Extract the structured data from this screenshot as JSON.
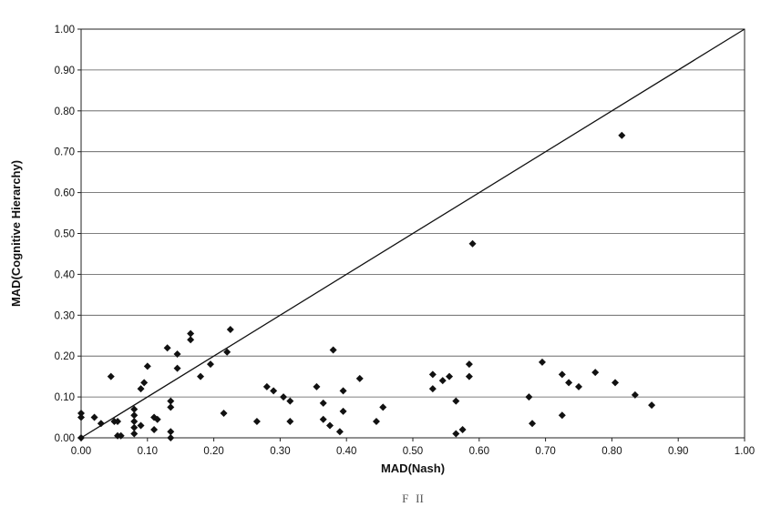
{
  "chart_data": {
    "type": "scatter",
    "title": "",
    "xlabel": "MAD(Nash)",
    "ylabel": "MAD(Cognitive Hierarchy)",
    "xlim": [
      0,
      1
    ],
    "ylim": [
      0,
      1
    ],
    "x_ticks": [
      "0.00",
      "0.10",
      "0.20",
      "0.30",
      "0.40",
      "0.50",
      "0.60",
      "0.70",
      "0.80",
      "0.90",
      "1.00"
    ],
    "y_ticks": [
      "0.00",
      "0.10",
      "0.20",
      "0.30",
      "0.40",
      "0.50",
      "0.60",
      "0.70",
      "0.80",
      "0.90",
      "1.00"
    ],
    "grid": "horizontal",
    "legend": "none",
    "reference_line": {
      "from": [
        0,
        0
      ],
      "to": [
        1,
        1
      ]
    },
    "marker": "diamond",
    "marker_color": "#111111",
    "caption": "F   II",
    "points": [
      [
        0.0,
        0.06
      ],
      [
        0.0,
        0.05
      ],
      [
        0.0,
        0.0
      ],
      [
        0.02,
        0.05
      ],
      [
        0.03,
        0.035
      ],
      [
        0.045,
        0.15
      ],
      [
        0.05,
        0.04
      ],
      [
        0.055,
        0.04
      ],
      [
        0.055,
        0.005
      ],
      [
        0.06,
        0.005
      ],
      [
        0.08,
        0.07
      ],
      [
        0.08,
        0.055
      ],
      [
        0.08,
        0.04
      ],
      [
        0.08,
        0.025
      ],
      [
        0.08,
        0.01
      ],
      [
        0.09,
        0.03
      ],
      [
        0.09,
        0.12
      ],
      [
        0.095,
        0.135
      ],
      [
        0.1,
        0.175
      ],
      [
        0.11,
        0.05
      ],
      [
        0.11,
        0.02
      ],
      [
        0.115,
        0.045
      ],
      [
        0.13,
        0.22
      ],
      [
        0.135,
        0.09
      ],
      [
        0.135,
        0.075
      ],
      [
        0.135,
        0.015
      ],
      [
        0.135,
        0.0
      ],
      [
        0.145,
        0.205
      ],
      [
        0.145,
        0.17
      ],
      [
        0.165,
        0.255
      ],
      [
        0.165,
        0.24
      ],
      [
        0.18,
        0.15
      ],
      [
        0.195,
        0.18
      ],
      [
        0.215,
        0.06
      ],
      [
        0.22,
        0.21
      ],
      [
        0.225,
        0.265
      ],
      [
        0.265,
        0.04
      ],
      [
        0.28,
        0.125
      ],
      [
        0.29,
        0.115
      ],
      [
        0.305,
        0.1
      ],
      [
        0.315,
        0.09
      ],
      [
        0.315,
        0.04
      ],
      [
        0.355,
        0.125
      ],
      [
        0.365,
        0.085
      ],
      [
        0.365,
        0.045
      ],
      [
        0.375,
        0.03
      ],
      [
        0.38,
        0.215
      ],
      [
        0.39,
        0.015
      ],
      [
        0.395,
        0.115
      ],
      [
        0.395,
        0.065
      ],
      [
        0.42,
        0.145
      ],
      [
        0.445,
        0.04
      ],
      [
        0.455,
        0.075
      ],
      [
        0.53,
        0.155
      ],
      [
        0.53,
        0.12
      ],
      [
        0.545,
        0.14
      ],
      [
        0.555,
        0.15
      ],
      [
        0.565,
        0.09
      ],
      [
        0.565,
        0.01
      ],
      [
        0.575,
        0.02
      ],
      [
        0.585,
        0.18
      ],
      [
        0.585,
        0.15
      ],
      [
        0.59,
        0.475
      ],
      [
        0.675,
        0.1
      ],
      [
        0.68,
        0.035
      ],
      [
        0.695,
        0.185
      ],
      [
        0.725,
        0.155
      ],
      [
        0.725,
        0.055
      ],
      [
        0.735,
        0.135
      ],
      [
        0.75,
        0.125
      ],
      [
        0.775,
        0.16
      ],
      [
        0.805,
        0.135
      ],
      [
        0.815,
        0.74
      ],
      [
        0.835,
        0.105
      ],
      [
        0.86,
        0.08
      ]
    ]
  }
}
